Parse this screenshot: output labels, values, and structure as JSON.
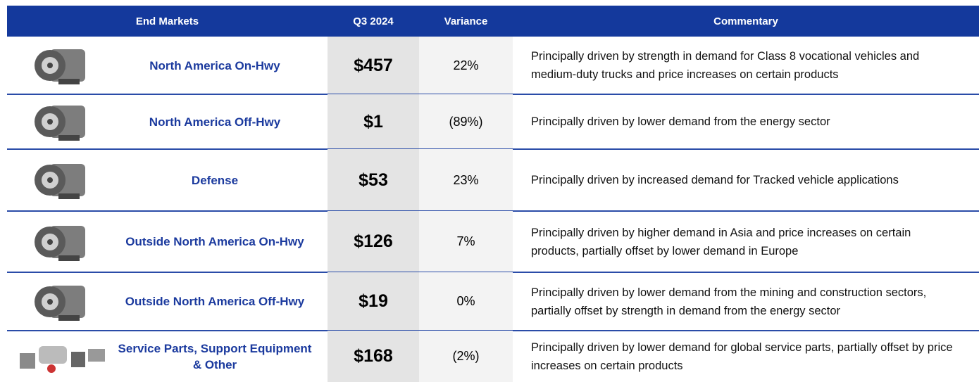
{
  "table": {
    "headers": [
      "End Markets",
      "Q3 2024",
      "Variance",
      "Commentary"
    ],
    "rows": [
      [
        "North America On-Hwy",
        "$457",
        "22%",
        "Principally driven by strength in demand for Class 8 vocational vehicles and medium-duty trucks and price increases on certain products"
      ],
      [
        "North America Off-Hwy",
        "$1",
        "(89%)",
        "Principally driven by lower demand from the energy sector"
      ],
      [
        "Defense",
        "$53",
        "23%",
        "Principally driven by increased demand for Tracked vehicle applications"
      ],
      [
        "Outside North America On-Hwy",
        "$126",
        "7%",
        "Principally driven by higher demand in Asia and price increases on certain products, partially offset by lower demand in Europe"
      ],
      [
        "Outside North America Off-Hwy",
        "$19",
        "0%",
        "Principally driven by lower demand from the mining and construction sectors, partially offset by strength in demand from the energy sector"
      ],
      [
        "Service Parts, Support Equipment & Other",
        "$168",
        "(2%)",
        "Principally driven by lower demand for global service parts, partially offset by price increases on certain products"
      ]
    ]
  }
}
